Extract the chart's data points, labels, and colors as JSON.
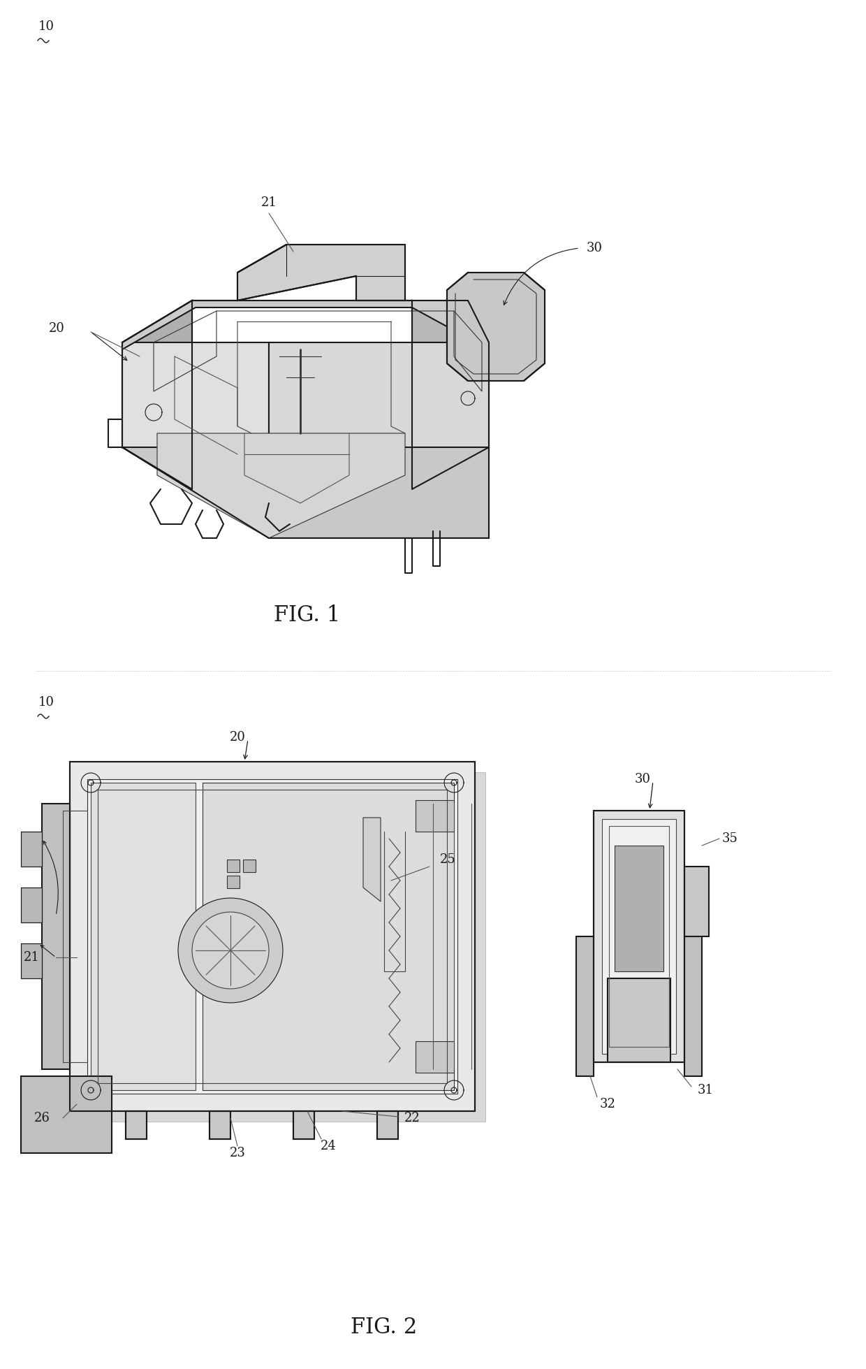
{
  "fig_width": 12.4,
  "fig_height": 19.59,
  "dpi": 100,
  "background_color": "#ffffff",
  "fig1_title": "FIG. 1",
  "fig2_title": "FIG. 2",
  "fig1_label_10": "10",
  "fig1_label_20": "20",
  "fig1_label_21": "21",
  "fig1_label_30": "30",
  "fig2_label_10": "10",
  "fig2_label_20": "20",
  "fig2_label_21": "21",
  "fig2_label_22": "22",
  "fig2_label_23": "23",
  "fig2_label_24": "24",
  "fig2_label_25": "25",
  "fig2_label_26": "26",
  "fig2_label_30": "30",
  "fig2_label_31": "31",
  "fig2_label_32": "32",
  "fig2_label_35": "35",
  "line_color": "#1a1a1a",
  "fill_color": "#d0d0d0",
  "light_fill": "#e8e8e8",
  "dark_fill": "#555555"
}
